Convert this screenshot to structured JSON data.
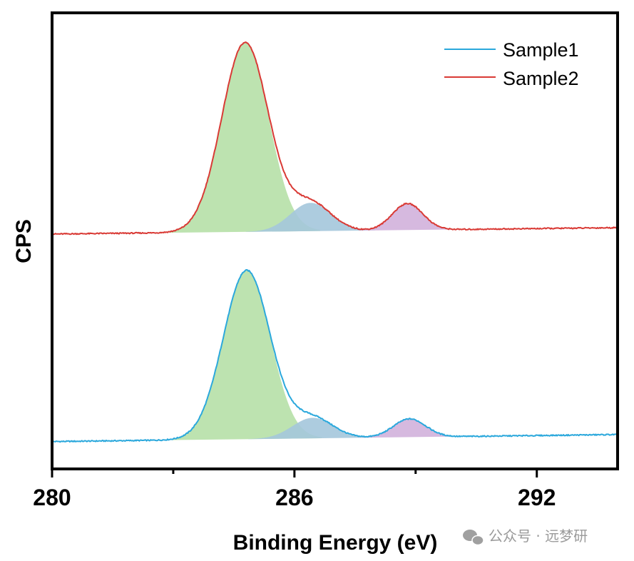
{
  "chart_data": {
    "type": "line",
    "title": "",
    "xlabel": "Binding Energy (eV)",
    "ylabel": "CPS",
    "xlim": [
      280,
      294
    ],
    "x_ticks": [
      280,
      286,
      292
    ],
    "x_minor_ticks": [
      283,
      289
    ],
    "ylim": [
      0,
      1
    ],
    "y_ticks": [],
    "grid": false,
    "legend_position": "top-right",
    "series": [
      {
        "name": "Sample1",
        "color": "#2ba8dc",
        "baseline_offset": 0.06,
        "baseline_slope": 0.0011,
        "peaks": [
          {
            "component": "C1",
            "center": 284.82,
            "sigma": 0.58,
            "height": 0.37,
            "fill": "#b6e0a7"
          },
          {
            "component": "C2",
            "center": 286.45,
            "sigma": 0.5,
            "height": 0.045,
            "fill": "#a4c6dc"
          },
          {
            "component": "C3",
            "center": 288.85,
            "sigma": 0.4,
            "height": 0.04,
            "fill": "#d2b1dc"
          }
        ]
      },
      {
        "name": "Sample2",
        "color": "#d93a35",
        "baseline_offset": 0.515,
        "baseline_slope": 0.001,
        "peaks": [
          {
            "component": "C1",
            "center": 284.78,
            "sigma": 0.58,
            "height": 0.415,
            "fill": "#b6e0a7"
          },
          {
            "component": "C2",
            "center": 286.4,
            "sigma": 0.5,
            "height": 0.062,
            "fill": "#a4c6dc"
          },
          {
            "component": "C3",
            "center": 288.8,
            "sigma": 0.38,
            "height": 0.058,
            "fill": "#d2b1dc"
          }
        ]
      }
    ]
  },
  "watermark": {
    "icon": "wechat-icon",
    "text": "公众号 · 远梦研"
  }
}
